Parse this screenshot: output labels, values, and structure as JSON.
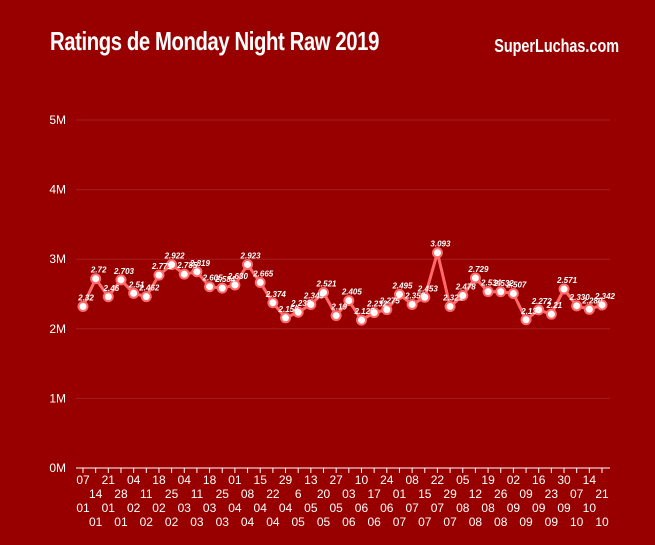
{
  "header": {
    "title": "Ratings de Monday Night Raw 2019",
    "brand": "SuperLuchas.com"
  },
  "colors": {
    "background": "#980000",
    "line": "#ff6b6b",
    "marker_fill": "#ffffff",
    "text": "#ffffff"
  },
  "chart_data": {
    "type": "line",
    "title": "Ratings de Monday Night Raw 2019",
    "xlabel": "",
    "ylabel": "",
    "ylim": [
      0,
      5000000
    ],
    "yticks": [
      "0M",
      "1M",
      "2M",
      "3M",
      "4M",
      "5M"
    ],
    "grid": true,
    "categories": [
      "07 01",
      "14 01",
      "21 01",
      "28 01",
      "04 02",
      "11 02",
      "18 02",
      "25 02",
      "04 03",
      "11 03",
      "18 03",
      "25 03",
      "01 04",
      "08 04",
      "15 04",
      "22 04",
      "29 04",
      "6 05",
      "13 05",
      "20 05",
      "27 05",
      "03 06",
      "10 06",
      "17 06",
      "24 06",
      "01 07",
      "08 07",
      "15 07",
      "22 07",
      "29 07",
      "05 08",
      "12 08",
      "19 08",
      "26 08",
      "02 09",
      "09 09",
      "16 09",
      "23 09",
      "30 09",
      "07 10",
      "14 10",
      "21 10"
    ],
    "series": [
      {
        "values": [
          2.32,
          2.72,
          2.46,
          2.703,
          2.51,
          2.462,
          2.771,
          2.922,
          2.785,
          2.819,
          2.605,
          2.584,
          2.63,
          2.923,
          2.665,
          2.374,
          2.158,
          2.238,
          2.349,
          2.521,
          2.19,
          2.405,
          2.125,
          2.232,
          2.275,
          2.495,
          2.35,
          2.453,
          3.093,
          2.321,
          2.478,
          2.729,
          2.534,
          2.532,
          2.507,
          2.13,
          2.272,
          2.21,
          2.571,
          2.33,
          2.28,
          2.342
        ],
        "labels": [
          "2.32",
          "2.72",
          "2.46",
          "2.703",
          "2.51",
          "2.462",
          "2.771",
          "2.922",
          "2.785",
          "2.819",
          "2.605",
          "2.584",
          "2.630",
          "2.923",
          "2.665",
          "2.374",
          "2.158",
          "2.238",
          "2.349",
          "2.521",
          "2.19",
          "2.405",
          "2.125",
          "2.232",
          "2.275",
          "2.495",
          "2.350",
          "2.453",
          "3.093",
          "2.321",
          "2.478",
          "2.729",
          "2.534",
          "2.532",
          "2.507",
          "2.13",
          "2.272",
          "2.21",
          "2.571",
          "2.330",
          "2.280",
          "2.342"
        ],
        "units": "M"
      }
    ]
  }
}
